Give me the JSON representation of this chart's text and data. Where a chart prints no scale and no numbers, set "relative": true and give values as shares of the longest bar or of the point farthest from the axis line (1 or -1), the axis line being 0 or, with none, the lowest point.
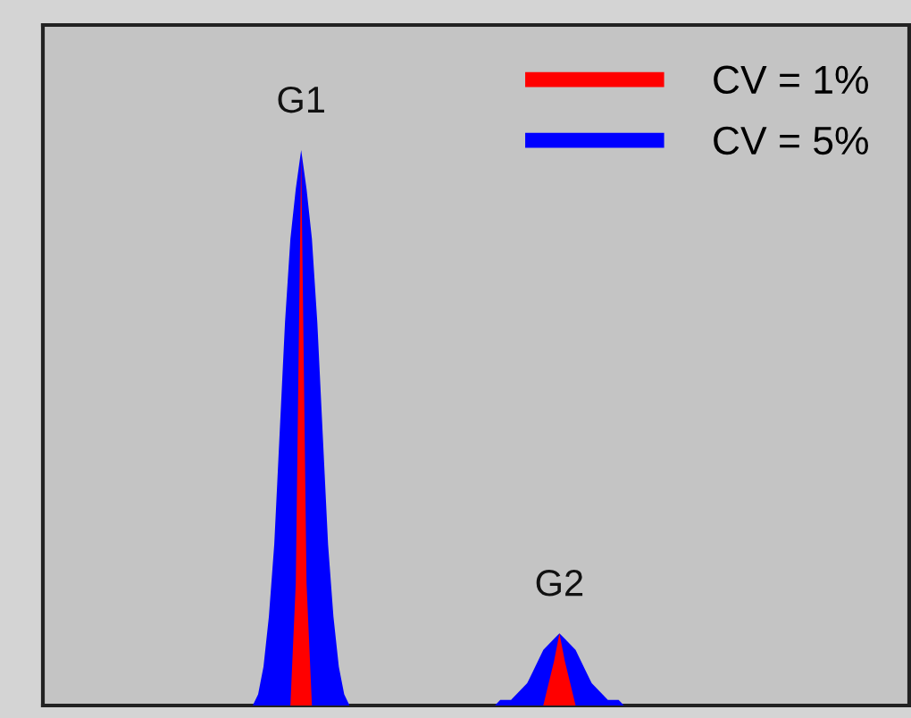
{
  "chart_data": {
    "type": "area",
    "relative": true,
    "legend": "top right",
    "grid": false,
    "categories": [
      null,
      null,
      null,
      null,
      null,
      null,
      null,
      null,
      null,
      null,
      null,
      null,
      null,
      null,
      null,
      null,
      null,
      null,
      null,
      null,
      null,
      null,
      null,
      null,
      null,
      null,
      null,
      null,
      null,
      null,
      null,
      null,
      null,
      null,
      null,
      null,
      null,
      null,
      null,
      null,
      null,
      null,
      null,
      null,
      null,
      null,
      null,
      null,
      null,
      null,
      null,
      null,
      null,
      null,
      null,
      null,
      null,
      null,
      null,
      null,
      null,
      null,
      null,
      null,
      null,
      null,
      null,
      null,
      null,
      null,
      null,
      null,
      null,
      null,
      null,
      null,
      null,
      null,
      null,
      null,
      null,
      null,
      null,
      null,
      null,
      null,
      null,
      null,
      null,
      null,
      null,
      null,
      null,
      null,
      null,
      null,
      null,
      null,
      null,
      null,
      null,
      null,
      null,
      null,
      null,
      null,
      null,
      null,
      null,
      null,
      null,
      null,
      null,
      null,
      null,
      null,
      null,
      null,
      null,
      null,
      null,
      null,
      null,
      null,
      null,
      null,
      null,
      null,
      null,
      null,
      null,
      null,
      null,
      null,
      null,
      null,
      null,
      null,
      null,
      null,
      null,
      null,
      null,
      null,
      null,
      null,
      null,
      null,
      null,
      null,
      null,
      null,
      null,
      null,
      null,
      null,
      null,
      null,
      null,
      null,
      null,
      null
    ],
    "series": [
      {
        "name": "CV = 1%",
        "color": "#ff0000",
        "values": [
          0,
          0,
          0,
          0,
          0,
          0,
          0,
          0,
          0,
          0,
          0,
          0,
          0,
          0,
          0,
          0,
          0,
          0,
          0,
          0,
          0,
          0,
          0,
          0,
          0,
          0,
          0,
          0,
          0,
          0,
          0,
          0,
          0,
          0,
          0,
          0,
          0,
          0,
          0,
          0,
          0,
          0,
          0,
          0,
          0,
          0,
          0,
          0.22,
          0.99,
          0.22,
          0,
          0,
          0,
          0,
          0,
          0,
          0,
          0,
          0,
          0,
          0,
          0,
          0,
          0,
          0,
          0,
          0,
          0,
          0,
          0,
          0,
          0,
          0,
          0,
          0,
          0,
          0,
          0,
          0,
          0,
          0,
          0,
          0,
          0,
          0,
          0,
          0,
          0,
          0,
          0,
          0,
          0,
          0,
          0,
          0.04,
          0.08,
          0.13,
          0.08,
          0.04,
          0,
          0,
          0,
          0,
          0,
          0,
          0,
          0,
          0,
          0,
          0,
          0,
          0,
          0,
          0,
          0,
          0,
          0,
          0,
          0,
          0,
          0,
          0,
          0,
          0,
          0,
          0,
          0,
          0,
          0,
          0,
          0,
          0,
          0,
          0,
          0,
          0,
          0,
          0,
          0,
          0,
          0,
          0,
          0,
          0,
          0,
          0,
          0,
          0,
          0,
          0,
          0,
          0,
          0,
          0,
          0,
          0,
          0,
          0,
          0,
          0,
          0,
          0
        ]
      },
      {
        "name": "CV = 5%",
        "color": "#0000ff",
        "values": [
          0,
          0,
          0,
          0,
          0,
          0,
          0,
          0,
          0,
          0,
          0,
          0,
          0,
          0,
          0,
          0,
          0,
          0,
          0,
          0,
          0,
          0,
          0,
          0,
          0,
          0,
          0,
          0,
          0,
          0,
          0,
          0,
          0,
          0,
          0,
          0,
          0,
          0,
          0,
          0,
          0.02,
          0.07,
          0.16,
          0.29,
          0.49,
          0.69,
          0.84,
          0.93,
          1.0,
          0.93,
          0.84,
          0.69,
          0.49,
          0.29,
          0.16,
          0.07,
          0.02,
          0,
          0,
          0,
          0,
          0,
          0,
          0,
          0,
          0,
          0,
          0,
          0,
          0,
          0,
          0,
          0,
          0,
          0,
          0,
          0,
          0,
          0,
          0,
          0,
          0,
          0,
          0,
          0,
          0.01,
          0.01,
          0.01,
          0.02,
          0.03,
          0.04,
          0.06,
          0.08,
          0.1,
          0.11,
          0.12,
          0.13,
          0.12,
          0.11,
          0.1,
          0.08,
          0.06,
          0.04,
          0.03,
          0.02,
          0.01,
          0.01,
          0.01,
          0,
          0,
          0,
          0,
          0,
          0,
          0,
          0,
          0,
          0,
          0,
          0,
          0,
          0,
          0,
          0,
          0,
          0,
          0,
          0,
          0,
          0,
          0,
          0,
          0,
          0,
          0,
          0,
          0,
          0,
          0,
          0,
          0,
          0,
          0,
          0,
          0,
          0,
          0,
          0,
          0,
          0,
          0,
          0,
          0,
          0,
          0,
          0,
          0,
          0,
          0,
          0,
          0,
          0
        ]
      }
    ],
    "annotations": [
      "G1",
      "G2"
    ]
  }
}
